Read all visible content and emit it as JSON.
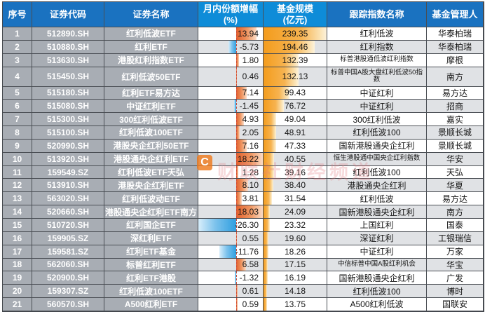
{
  "chart_data": {
    "type": "table",
    "title": "",
    "columns": [
      {
        "label": "序号",
        "label2": ""
      },
      {
        "label": "证券代码",
        "label2": ""
      },
      {
        "label": "证券名称",
        "label2": ""
      },
      {
        "label": "月内份额增幅",
        "label2": "(%)"
      },
      {
        "label": "基金规模",
        "label2": "(亿元)"
      },
      {
        "label": "跟踪指数名称",
        "label2": ""
      },
      {
        "label": "基金管理人",
        "label2": ""
      }
    ],
    "rows": [
      {
        "no": "1",
        "code": "512890.SH",
        "name": "红利低波ETF",
        "chg": 13.94,
        "aum": 239.35,
        "index": "红利低波",
        "mgr": "华泰柏瑞"
      },
      {
        "no": "2",
        "code": "510880.SH",
        "name": "红利ETF",
        "chg": -5.73,
        "aum": 194.46,
        "index": "红利指数",
        "mgr": "华泰柏瑞"
      },
      {
        "no": "3",
        "code": "513630.SH",
        "name": "港股红利指数ETF",
        "chg": 1.8,
        "aum": 132.39,
        "index": "标普港股通低波红利指数",
        "mgr": "摩根"
      },
      {
        "no": "4",
        "code": "515450.SH",
        "name": "红利低波50ETF",
        "chg": 0.46,
        "aum": 132.13,
        "index": "标普中国A股大盘红利低波50指数",
        "mgr": "南方"
      },
      {
        "no": "5",
        "code": "515180.SH",
        "name": "红利ETF易方达",
        "chg": 7.14,
        "aum": 99.43,
        "index": "中证红利",
        "mgr": "易方达"
      },
      {
        "no": "6",
        "code": "515080.SH",
        "name": "中证红利ETF",
        "chg": -1.45,
        "aum": 76.72,
        "index": "中证红利",
        "mgr": "招商"
      },
      {
        "no": "7",
        "code": "515300.SH",
        "name": "300红利低波ETF",
        "chg": 4.93,
        "aum": 49.04,
        "index": "300红利低波",
        "mgr": "嘉实"
      },
      {
        "no": "8",
        "code": "515100.SH",
        "name": "红利低波100ETF",
        "chg": 2.05,
        "aum": 48.91,
        "index": "红利低波100",
        "mgr": "景顺长城"
      },
      {
        "no": "9",
        "code": "520990.SH",
        "name": "港股央企红利50ETF",
        "chg": 7.16,
        "aum": 47.33,
        "index": "国新港股通央企红利",
        "mgr": "景顺长城"
      },
      {
        "no": "10",
        "code": "513920.SH",
        "name": "港股通央企红利ETF",
        "chg": 18.22,
        "aum": 40.55,
        "index": "恒生港股通中国央企红利指数",
        "mgr": "华安"
      },
      {
        "no": "11",
        "code": "159549.SZ",
        "name": "红利低波ETF天弘",
        "chg": 1.28,
        "aum": 39.16,
        "index": "红利低波100",
        "mgr": "天弘"
      },
      {
        "no": "12",
        "code": "513910.SH",
        "name": "港股央企红利ETF",
        "chg": 8.1,
        "aum": 38.4,
        "index": "港股通央企红利",
        "mgr": "华夏"
      },
      {
        "no": "13",
        "code": "563020.SH",
        "name": "红利低波动ETF",
        "chg": 3.81,
        "aum": 31.54,
        "index": "红利低波",
        "mgr": "易方达"
      },
      {
        "no": "14",
        "code": "520660.SH",
        "name": "港股通央企红利ETF南方",
        "chg": 18.03,
        "aum": 24.09,
        "index": "国新港股通央企红利",
        "mgr": "南方"
      },
      {
        "no": "15",
        "code": "510720.SH",
        "name": "红利国企ETF",
        "chg": -26.3,
        "aum": 23.32,
        "index": "上国红利",
        "mgr": "国泰"
      },
      {
        "no": "16",
        "code": "159905.SZ",
        "name": "深红利ETF",
        "chg": 0.55,
        "aum": 19.6,
        "index": "深证红利",
        "mgr": "工银瑞信"
      },
      {
        "no": "17",
        "code": "159581.SZ",
        "name": "红利ETF基金",
        "chg": -11.76,
        "aum": 18.26,
        "index": "中证红利",
        "mgr": "万家"
      },
      {
        "no": "18",
        "code": "562060.SH",
        "name": "标普红利ETF",
        "chg": 6.58,
        "aum": 17.15,
        "index": "中信标普中国A股红利机会",
        "mgr": "华宝"
      },
      {
        "no": "19",
        "code": "520900.SH",
        "name": "红利ETF港股",
        "chg": -1.32,
        "aum": 16.19,
        "index": "国新港股通央企红利",
        "mgr": "广发"
      },
      {
        "no": "20",
        "code": "159307.SZ",
        "name": "红利低波100ETF",
        "chg": 0.61,
        "aum": 14.18,
        "index": "红利低波100",
        "mgr": "博时"
      },
      {
        "no": "21",
        "code": "560570.SH",
        "name": "A500红利ETF",
        "chg": 0.59,
        "aum": 13.75,
        "index": "A500红利低波",
        "mgr": "国联安"
      }
    ],
    "layout_hints": {
      "chg_axis": "zero axis shown as red dashed line, positive bars orange-red to the right, negative bars blue to the left",
      "aum_bars": "orange gradient data bars from left, scaled to max value 239.35",
      "row_banding": "even rows shaded light gray"
    }
  },
  "watermark": {
    "logo_letter": "C",
    "text": "财联社财经频道"
  },
  "colors": {
    "header_blue": "#1a72c0",
    "header_azure": "#0e8cd8",
    "left_column_gray": "#a8adb4",
    "row_alt": "#e0e2e5",
    "positive_bar": "#e2602c",
    "negative_bar": "#2f9fe0",
    "aum_bar": "#f49c1c",
    "axis_red": "#cf4a35",
    "border": "#4a4e54"
  }
}
